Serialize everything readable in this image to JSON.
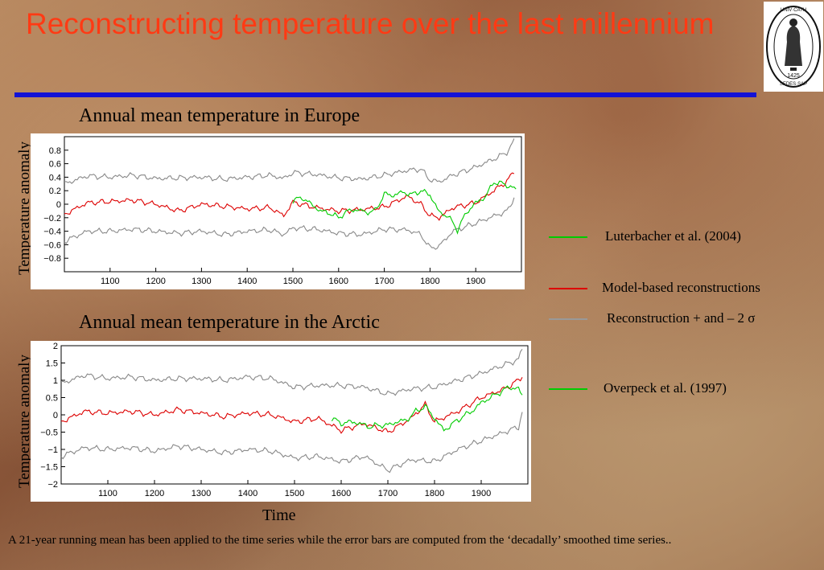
{
  "slide": {
    "title": "Reconstructing temperature over the last millennium",
    "x_axis_title": "Time",
    "caption": "A 21-year running mean has been applied to the time series while the error bars are computed from the ‘decadally’ smoothed time series.."
  },
  "logo": {
    "ring_text": "UNIVERSITAS CATHOLICA LOVANIENSIS SEDES SAPIENTIAE",
    "year": "1425"
  },
  "legend": [
    {
      "label": "Luterbacher et al. (2004)",
      "color": "#00cc00"
    },
    {
      "label": "Model-based reconstructions",
      "color": "#dd0000"
    },
    {
      "label": "Reconstruction + and – 2 σ",
      "color": "#999999"
    },
    {
      "label": "Overpeck et al. (1997)",
      "color": "#00cc00"
    }
  ],
  "chart_data": [
    {
      "type": "line",
      "title": "Annual mean temperature in Europe",
      "ylabel": "Temperature  anomaly",
      "xlim": [
        1000,
        2000
      ],
      "ylim": [
        -1.0,
        1.0
      ],
      "xticks": [
        1100,
        1200,
        1300,
        1400,
        1500,
        1600,
        1700,
        1800,
        1900
      ],
      "yticks": [
        0.8,
        0.6,
        0.4,
        0.2,
        0,
        -0.2,
        -0.4,
        -0.6,
        -0.8
      ],
      "ytick_labels": [
        "0.8",
        "0.6",
        "0.4",
        "0.2",
        "0",
        "−0.2",
        "−0.4",
        "−0.6",
        "−0.8"
      ],
      "series": [
        {
          "name": "Reconstruction + and – 2 σ",
          "color": "#888888",
          "x": [
            1000,
            1050,
            1100,
            1150,
            1200,
            1250,
            1300,
            1350,
            1400,
            1450,
            1480,
            1500,
            1550,
            1600,
            1650,
            1700,
            1750,
            1780,
            1800,
            1820,
            1850,
            1900,
            1950,
            1970,
            1985
          ],
          "y": [
            0.3,
            0.42,
            0.4,
            0.43,
            0.38,
            0.39,
            0.4,
            0.37,
            0.4,
            0.43,
            0.38,
            0.47,
            0.44,
            0.39,
            0.37,
            0.43,
            0.5,
            0.52,
            0.36,
            0.33,
            0.43,
            0.55,
            0.7,
            0.78,
            0.95
          ]
        },
        {
          "name": "Model-based reconstructions",
          "color": "#dd0000",
          "x": [
            1000,
            1050,
            1100,
            1150,
            1200,
            1250,
            1300,
            1350,
            1400,
            1450,
            1480,
            1500,
            1550,
            1600,
            1650,
            1700,
            1750,
            1780,
            1800,
            1820,
            1850,
            1900,
            1950,
            1970,
            1985
          ],
          "y": [
            -0.15,
            0.02,
            0.04,
            0.06,
            0.0,
            -0.1,
            0.0,
            -0.03,
            -0.07,
            -0.05,
            -0.17,
            0.03,
            -0.05,
            -0.1,
            -0.08,
            -0.04,
            0.12,
            0.0,
            -0.17,
            -0.2,
            -0.05,
            0.02,
            0.25,
            0.35,
            0.5
          ]
        },
        {
          "name": "Reconstruction + and – 2 σ",
          "color": "#888888",
          "x": [
            1000,
            1050,
            1100,
            1150,
            1200,
            1250,
            1300,
            1350,
            1400,
            1450,
            1480,
            1500,
            1550,
            1600,
            1650,
            1700,
            1750,
            1780,
            1800,
            1820,
            1850,
            1900,
            1950,
            1970,
            1985
          ],
          "y": [
            -0.55,
            -0.4,
            -0.4,
            -0.37,
            -0.4,
            -0.43,
            -0.4,
            -0.45,
            -0.4,
            -0.38,
            -0.45,
            -0.35,
            -0.37,
            -0.43,
            -0.45,
            -0.37,
            -0.38,
            -0.45,
            -0.65,
            -0.62,
            -0.4,
            -0.28,
            -0.15,
            -0.1,
            0.12
          ]
        },
        {
          "name": "Luterbacher et al. (2004)",
          "color": "#00cc00",
          "x": [
            1500,
            1520,
            1540,
            1560,
            1580,
            1600,
            1620,
            1640,
            1660,
            1680,
            1700,
            1720,
            1740,
            1760,
            1780,
            1800,
            1820,
            1840,
            1860,
            1880,
            1900,
            1920,
            1940,
            1960,
            1980,
            1990
          ],
          "y": [
            0.05,
            0.1,
            0.0,
            -0.1,
            -0.13,
            -0.2,
            -0.1,
            -0.08,
            -0.12,
            -0.1,
            0.15,
            0.13,
            0.18,
            0.14,
            0.2,
            0.14,
            -0.12,
            -0.18,
            -0.38,
            -0.12,
            0.02,
            0.1,
            0.33,
            0.3,
            0.25,
            0.2
          ]
        }
      ]
    },
    {
      "type": "line",
      "title": "Annual mean temperature in the Arctic",
      "ylabel": "Temperature  anomaly",
      "xlim": [
        1000,
        2000
      ],
      "ylim": [
        -2,
        2
      ],
      "xticks": [
        1100,
        1200,
        1300,
        1400,
        1500,
        1600,
        1700,
        1800,
        1900
      ],
      "yticks": [
        2,
        1.5,
        1,
        0.5,
        0,
        -0.5,
        -1,
        -1.5,
        -2
      ],
      "ytick_labels": [
        "2",
        "1.5",
        "1",
        "0.5",
        "0",
        "−0.5",
        "−1",
        "−1.5",
        "−2"
      ],
      "series": [
        {
          "name": "Reconstruction + and – 2 σ",
          "color": "#888888",
          "x": [
            1000,
            1050,
            1100,
            1150,
            1200,
            1250,
            1300,
            1350,
            1400,
            1450,
            1500,
            1550,
            1600,
            1650,
            1700,
            1750,
            1800,
            1850,
            1900,
            1950,
            1980,
            1990
          ],
          "y": [
            0.9,
            1.15,
            1.05,
            1.1,
            1.0,
            1.05,
            1.05,
            1.0,
            1.1,
            1.05,
            0.8,
            0.85,
            0.85,
            0.8,
            0.6,
            0.75,
            0.8,
            1.0,
            1.2,
            1.45,
            1.6,
            2.0
          ]
        },
        {
          "name": "Model-based reconstructions",
          "color": "#dd0000",
          "x": [
            1000,
            1050,
            1100,
            1150,
            1200,
            1250,
            1300,
            1350,
            1400,
            1450,
            1500,
            1550,
            1600,
            1650,
            1700,
            1750,
            1780,
            1800,
            1850,
            1900,
            1950,
            1980,
            1990
          ],
          "y": [
            -0.2,
            0.1,
            0.05,
            0.1,
            0.0,
            0.15,
            0.05,
            -0.05,
            0.05,
            0.0,
            -0.2,
            -0.1,
            -0.45,
            -0.25,
            -0.5,
            -0.1,
            0.3,
            -0.2,
            0.1,
            0.5,
            0.75,
            1.0,
            1.15
          ]
        },
        {
          "name": "Reconstruction + and – 2 σ",
          "color": "#888888",
          "x": [
            1000,
            1050,
            1100,
            1150,
            1200,
            1250,
            1300,
            1350,
            1400,
            1450,
            1500,
            1550,
            1600,
            1650,
            1700,
            1750,
            1800,
            1850,
            1900,
            1950,
            1980,
            1990
          ],
          "y": [
            -1.2,
            -0.95,
            -1.0,
            -0.95,
            -1.05,
            -0.9,
            -1.0,
            -1.1,
            -1.0,
            -1.05,
            -1.25,
            -1.2,
            -1.35,
            -1.2,
            -1.6,
            -1.3,
            -1.35,
            -1.0,
            -0.75,
            -0.5,
            -0.35,
            0.2
          ]
        },
        {
          "name": "Overpeck et al. (1997)",
          "color": "#00cc00",
          "x": [
            1580,
            1600,
            1620,
            1640,
            1660,
            1680,
            1700,
            1720,
            1740,
            1760,
            1780,
            1800,
            1820,
            1840,
            1860,
            1880,
            1900,
            1920,
            1940,
            1960,
            1980,
            1990
          ],
          "y": [
            -0.1,
            -0.25,
            -0.2,
            -0.25,
            -0.35,
            -0.3,
            -0.3,
            -0.2,
            -0.15,
            0.1,
            0.25,
            -0.1,
            -0.45,
            -0.25,
            -0.05,
            0.1,
            0.35,
            0.5,
            0.65,
            0.8,
            0.75,
            0.5
          ]
        }
      ]
    }
  ]
}
